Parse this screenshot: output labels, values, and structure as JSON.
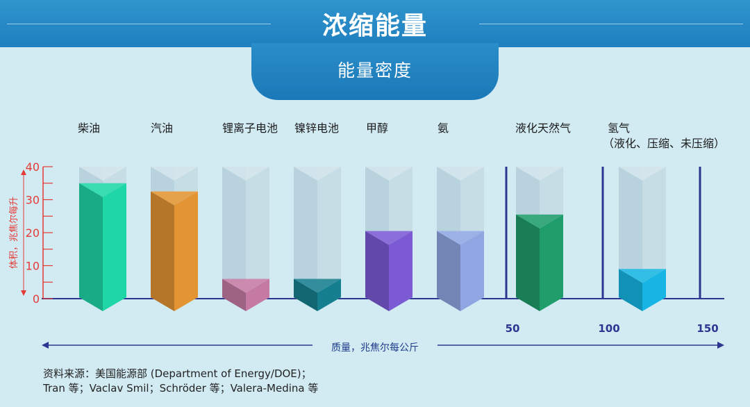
{
  "header": {
    "title": "浓缩能量",
    "subtitle": "能量密度"
  },
  "colors": {
    "header_bg": "#2387c5",
    "axis_blue": "#2c3590",
    "axis_red": "#e53935",
    "background": "#d2ebf3"
  },
  "chart_data": {
    "type": "bar",
    "title": "浓缩能量",
    "subtitle": "能量密度",
    "ylabel": "体积，兆焦尔每升",
    "xlabel": "质量，兆焦尔每公斤",
    "ylim": [
      0,
      40
    ],
    "y_ticks": [
      "0",
      "10",
      "20",
      "30",
      "40"
    ],
    "x_ticks": [
      "50",
      "100",
      "150"
    ],
    "categories": [
      {
        "name": "柴油",
        "volumetric": 35,
        "color": "#1ed6a6"
      },
      {
        "name": "汽油",
        "volumetric": 32.5,
        "color": "#e39433"
      },
      {
        "name": "锂离子电池",
        "volumetric": 6,
        "color": "#c57aa4"
      },
      {
        "name": "镍锌电池",
        "volumetric": 6,
        "color": "#167f8f"
      },
      {
        "name": "甲醇",
        "volumetric": 20.5,
        "color": "#7b5ad4"
      },
      {
        "name": "氨",
        "volumetric": 20.5,
        "color": "#8fa6e2"
      },
      {
        "name": "液化天然气",
        "volumetric": 25.5,
        "color": "#1f9e6c"
      },
      {
        "name": "氢气",
        "note": "（液化、压缩、未压缩）",
        "volumetric": 9,
        "color": "#17b5e3"
      }
    ]
  },
  "source": {
    "line1": "资料来源：美国能源部 (Department of Energy/DOE)；",
    "line2": "Tran 等；Vaclav Smil；Schröder 等；Valera-Medina 等"
  }
}
